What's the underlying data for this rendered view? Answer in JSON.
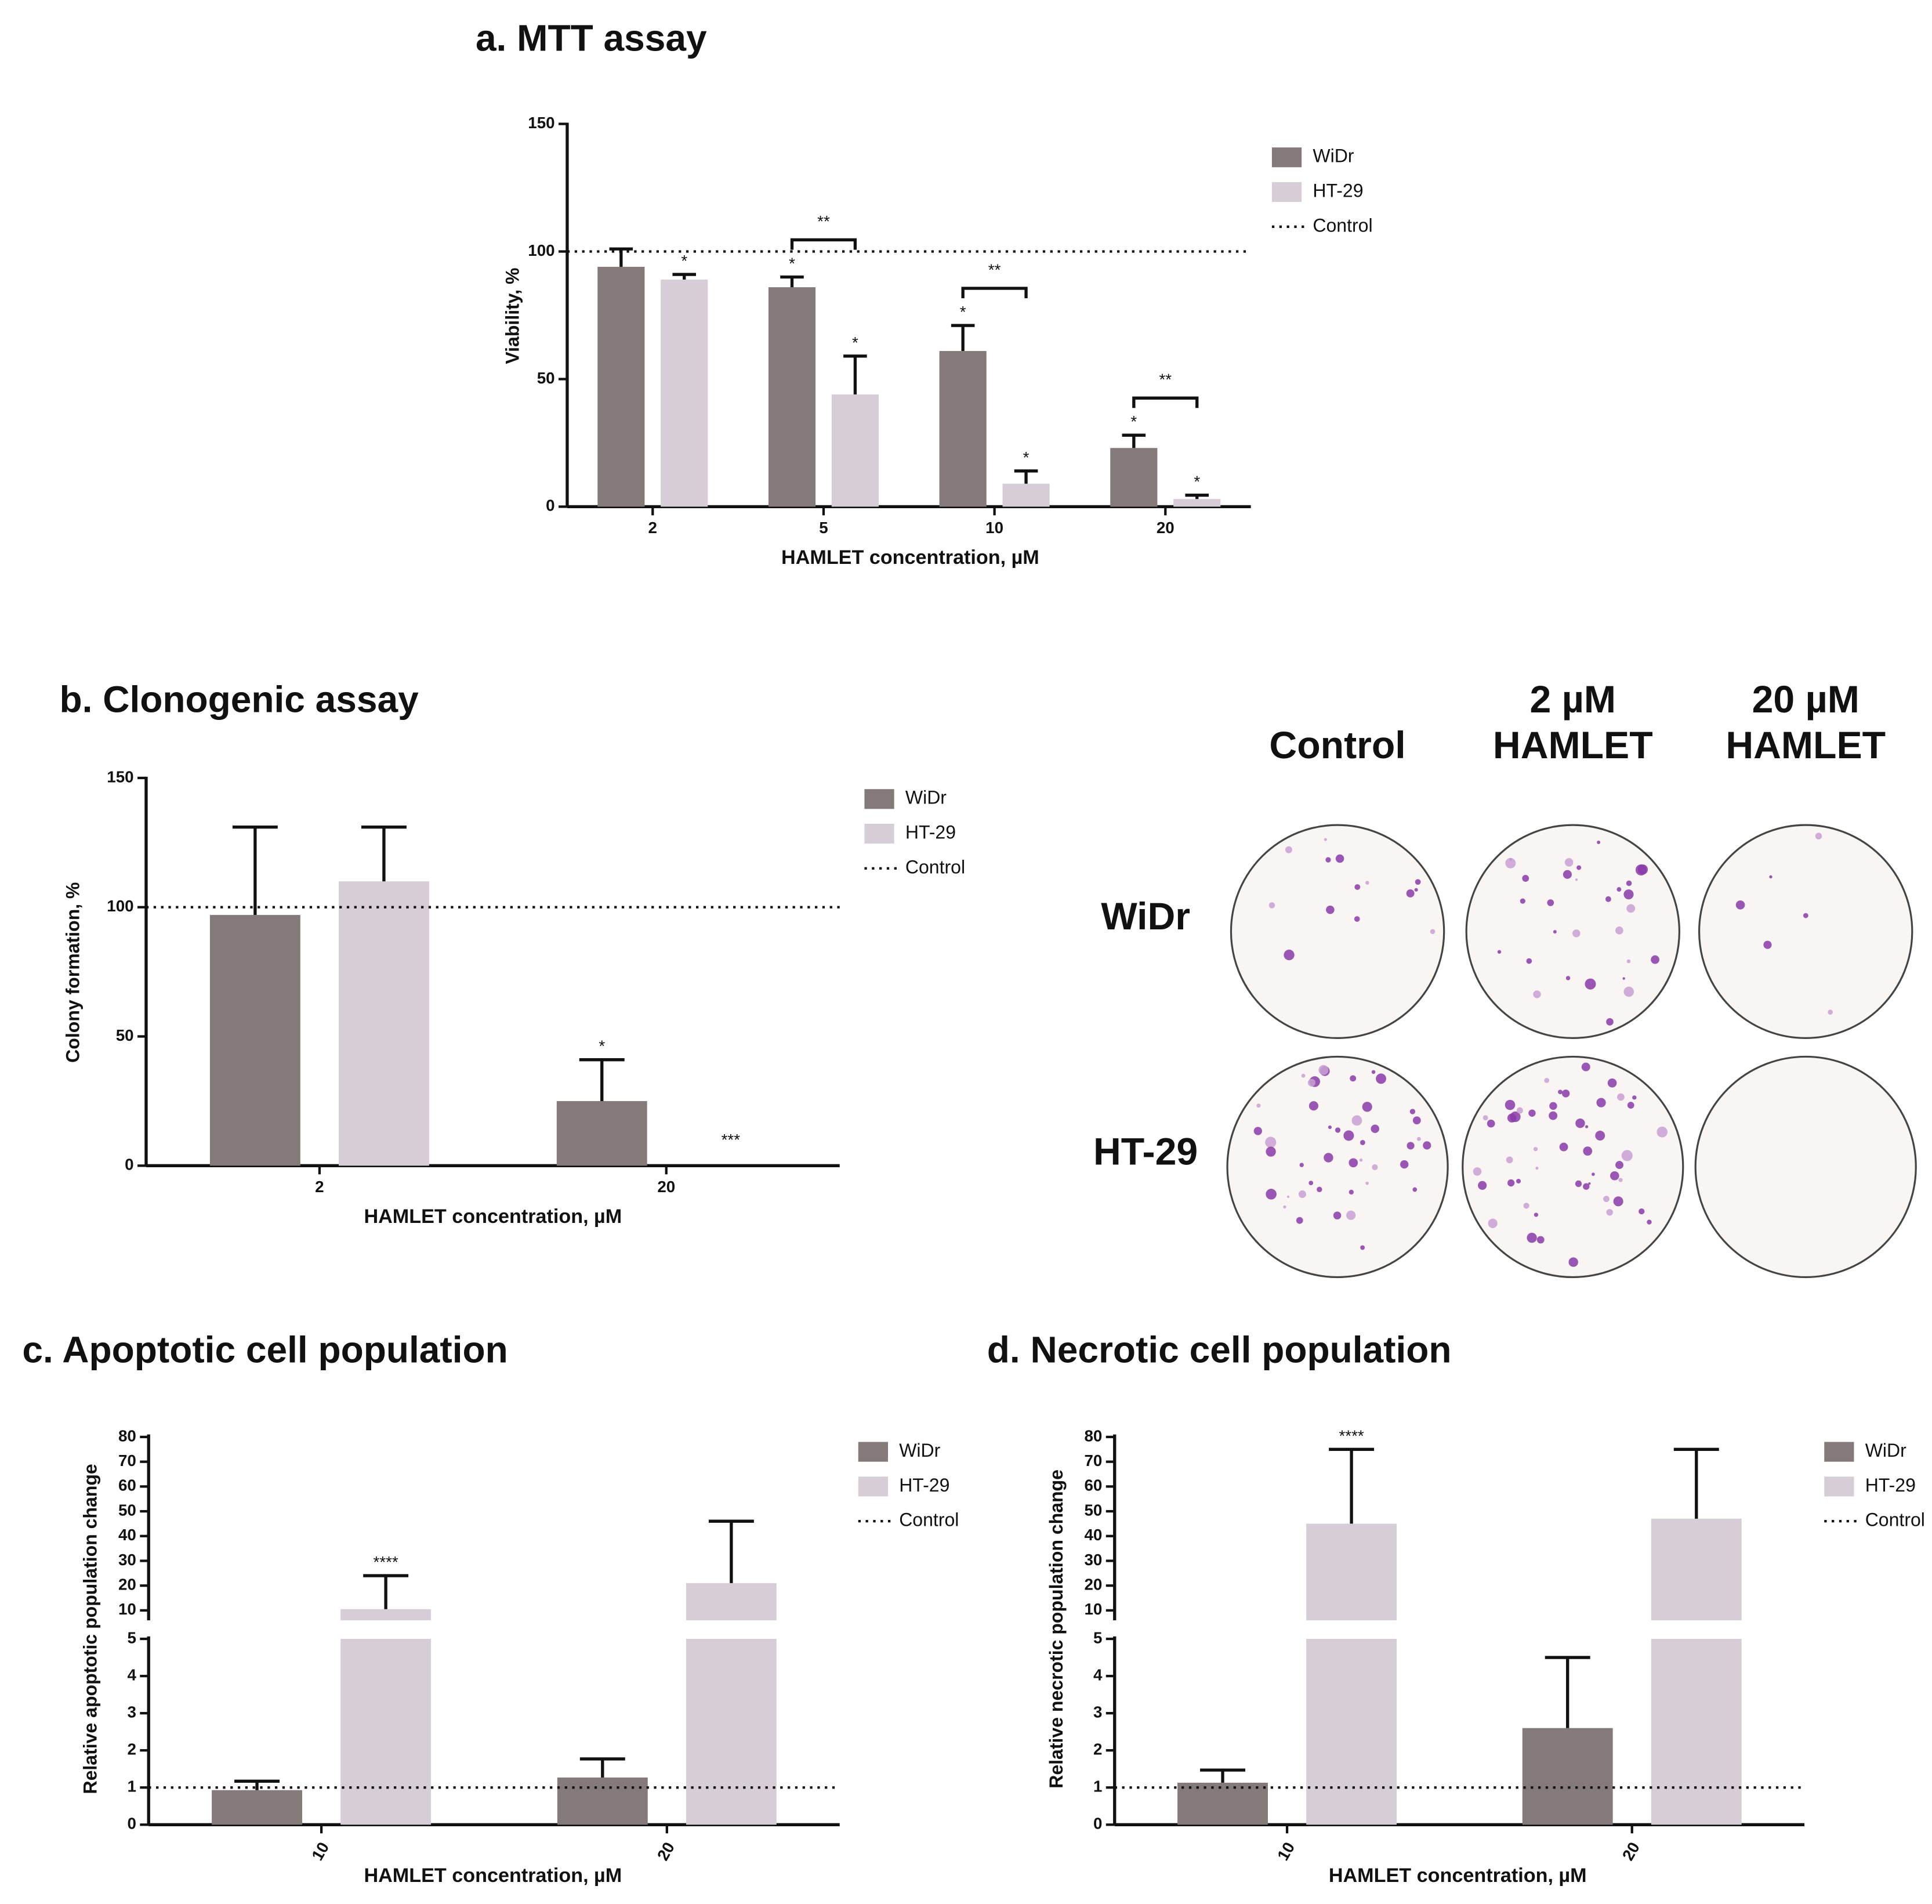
{
  "chart_data": [
    {
      "type": "bar",
      "title": "a. MTT assay",
      "xlabel": "HAMLET concentration, µM",
      "ylabel": "Viability, %",
      "categories": [
        "2",
        "5",
        "10",
        "20"
      ],
      "series": [
        {
          "name": "WiDr",
          "color": "#847a7a",
          "values": [
            94,
            86,
            61,
            23
          ],
          "errors": [
            7,
            4,
            10,
            5
          ],
          "annotations": [
            null,
            "*",
            "*",
            "*"
          ]
        },
        {
          "name": "HT-29",
          "color": "#d6cdd6",
          "values": [
            89,
            44,
            9,
            3
          ],
          "errors": [
            2,
            15,
            5,
            1.5
          ],
          "annotations": [
            "*",
            "*",
            "*",
            "*"
          ]
        }
      ],
      "bracket_labels": [
        null,
        "**",
        "**",
        "**"
      ],
      "reference_line": {
        "name": "Control",
        "value": 100
      },
      "ylim": [
        0,
        150
      ],
      "yticks": [
        0,
        50,
        100,
        150
      ],
      "legend": "upper right"
    },
    {
      "type": "bar",
      "title": "b. Clonogenic assay",
      "xlabel": "HAMLET concentration, µM",
      "ylabel": "Colony formation, %",
      "categories": [
        "2",
        "20"
      ],
      "series": [
        {
          "name": "WiDr",
          "color": "#847a7a",
          "values": [
            97,
            25
          ],
          "errors": [
            34,
            16
          ],
          "annotations": [
            null,
            "*"
          ]
        },
        {
          "name": "HT-29",
          "color": "#d6cdd6",
          "values": [
            110,
            0
          ],
          "errors": [
            21,
            0
          ],
          "annotations": [
            null,
            "***"
          ]
        }
      ],
      "reference_line": {
        "name": "Control",
        "value": 100
      },
      "ylim": [
        0,
        150
      ],
      "yticks": [
        0,
        50,
        100,
        150
      ],
      "legend": "upper right"
    },
    {
      "type": "bar",
      "title": "c. Apoptotic cell population",
      "xlabel": "HAMLET concentration, µM",
      "ylabel": "Relative apoptotic population change",
      "categories": [
        "10",
        "20"
      ],
      "series": [
        {
          "name": "WiDr",
          "color": "#847a7a",
          "values": [
            0.93,
            1.27
          ],
          "errors": [
            0.24,
            0.5
          ],
          "annotations": [
            null,
            null
          ]
        },
        {
          "name": "HT-29",
          "color": "#d6cdd6",
          "values": [
            10.5,
            21
          ],
          "errors": [
            13.5,
            25
          ],
          "annotations": [
            "****",
            null
          ]
        }
      ],
      "reference_line": {
        "name": "Control",
        "value": 1
      },
      "ylim": [
        0,
        80
      ],
      "axis_break": [
        5,
        10
      ],
      "yticks": [
        0,
        1,
        2,
        3,
        4,
        5,
        10,
        20,
        30,
        40,
        50,
        60,
        70,
        80
      ],
      "legend": "upper right"
    },
    {
      "type": "bar",
      "title": "d. Necrotic cell population",
      "xlabel": "HAMLET concentration, µM",
      "ylabel": "Relative necrotic population change",
      "categories": [
        "10",
        "20"
      ],
      "series": [
        {
          "name": "WiDr",
          "color": "#847a7a",
          "values": [
            1.13,
            2.6
          ],
          "errors": [
            0.34,
            1.9
          ],
          "annotations": [
            null,
            null
          ]
        },
        {
          "name": "HT-29",
          "color": "#d6cdd6",
          "values": [
            45,
            47
          ],
          "errors": [
            30,
            28
          ],
          "annotations": [
            "****",
            null
          ]
        }
      ],
      "reference_line": {
        "name": "Control",
        "value": 1
      },
      "ylim": [
        0,
        80
      ],
      "axis_break": [
        5,
        10
      ],
      "yticks": [
        0,
        1,
        2,
        3,
        4,
        5,
        10,
        20,
        30,
        40,
        50,
        60,
        70,
        80
      ],
      "legend": "upper right"
    }
  ],
  "image_panel": {
    "columns": [
      [
        "Control"
      ],
      [
        "2 µM",
        "HAMLET"
      ],
      [
        "20 µM",
        "HAMLET"
      ]
    ],
    "rows": [
      "WiDr",
      "HT-29"
    ]
  }
}
